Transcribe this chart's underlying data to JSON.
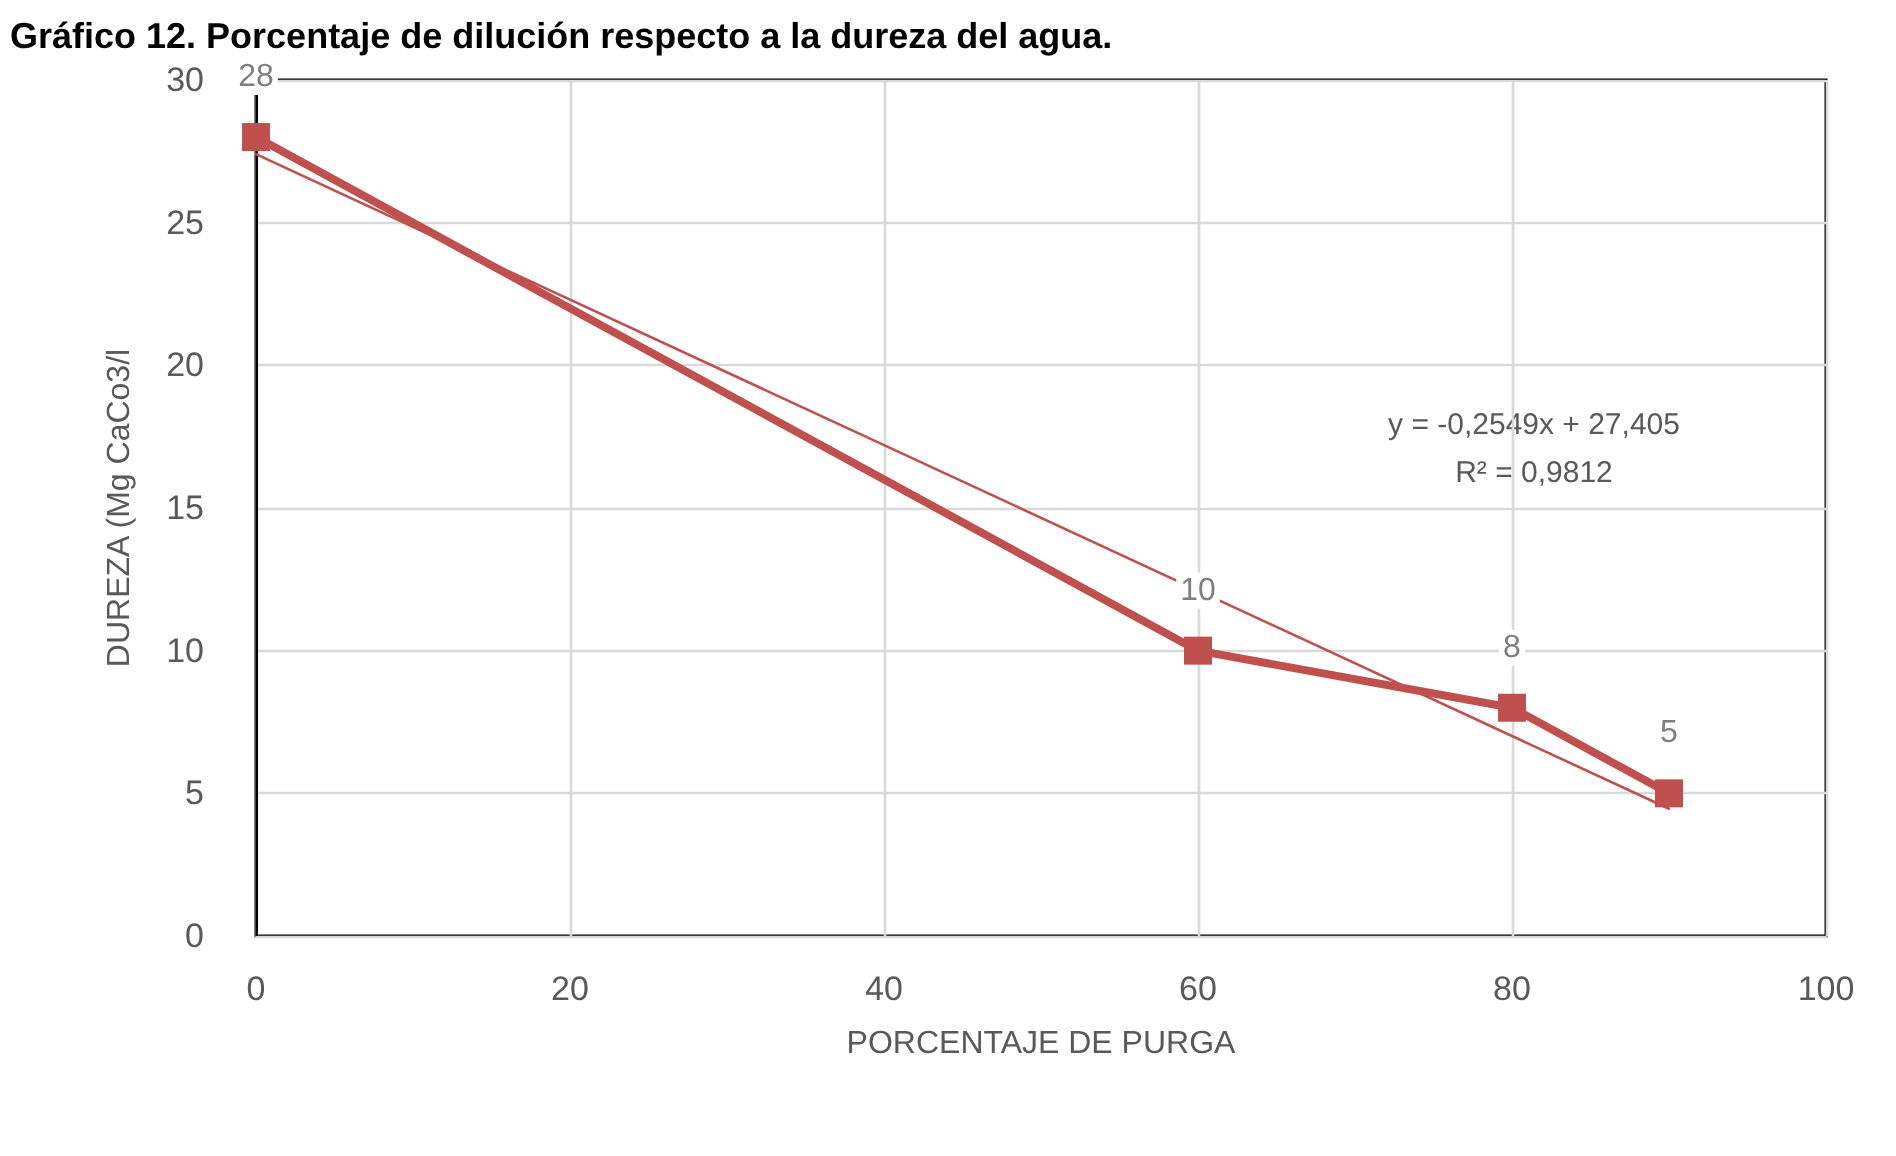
{
  "chart_data": {
    "type": "line",
    "title": "Gráfico 12. Porcentaje de dilución respecto a la dureza del agua.",
    "xlabel": "PORCENTAJE DE PURGA",
    "ylabel": "DUREZA (Mg CaCo3/l",
    "x": [
      0,
      60,
      80,
      90
    ],
    "series": [
      {
        "color": "#c0504d",
        "values": [
          28,
          10,
          8,
          5
        ],
        "value_labels": [
          "28",
          "10",
          "8",
          "5"
        ],
        "marker": "square"
      },
      {
        "type": "line",
        "x": [
          0,
          90
        ],
        "values": [
          27.4,
          4.46
        ],
        "color": "#c0504d",
        "marker": "none"
      }
    ],
    "annotations": [
      "y = -0,2549x + 27,405",
      "R² = 0,9812"
    ],
    "xlim": [
      0,
      100
    ],
    "xticks": [
      0,
      20,
      40,
      60,
      80,
      100
    ],
    "ylim": [
      0,
      30
    ],
    "yticks": [
      0,
      5,
      10,
      15,
      20,
      25,
      30
    ],
    "grid": true,
    "line_style": "solid"
  }
}
